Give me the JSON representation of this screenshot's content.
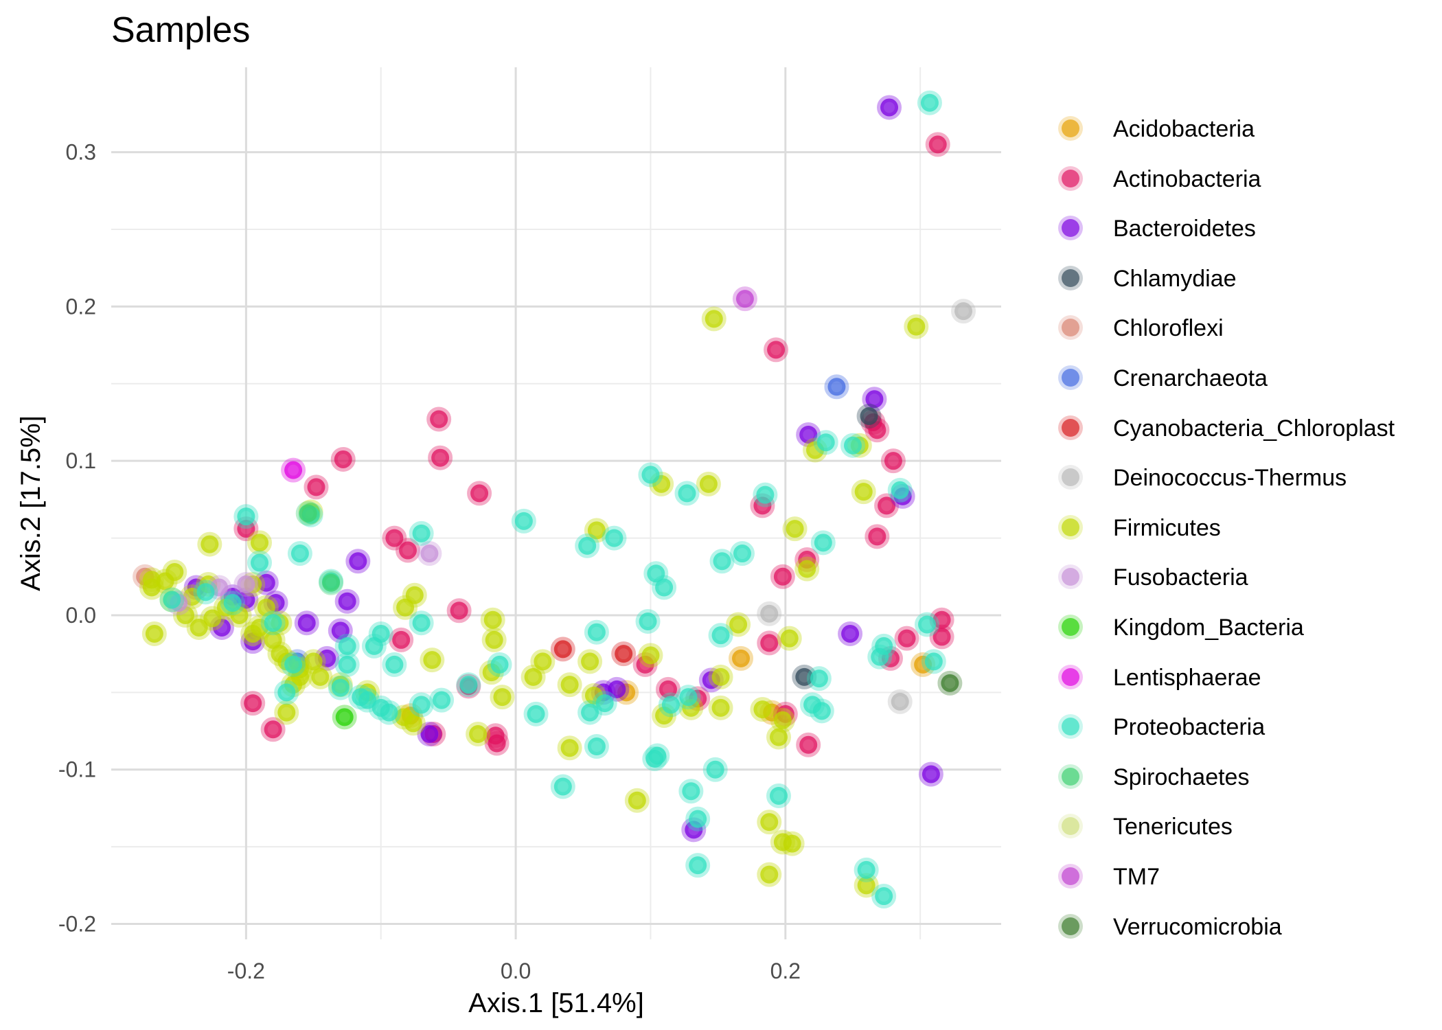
{
  "chart_data": {
    "type": "scatter",
    "title": "Samples",
    "xlabel": "Axis.1   [51.4%]",
    "ylabel": "Axis.2   [17.5%]",
    "xlim": [
      -0.3,
      0.36
    ],
    "ylim": [
      -0.21,
      0.355
    ],
    "x_ticks": [
      {
        "v": -0.2,
        "label": "-0.2"
      },
      {
        "v": 0.0,
        "label": "0.0"
      },
      {
        "v": 0.2,
        "label": "0.2"
      }
    ],
    "y_ticks": [
      {
        "v": -0.2,
        "label": "-0.2"
      },
      {
        "v": -0.1,
        "label": "-0.1"
      },
      {
        "v": 0.0,
        "label": "0.0"
      },
      {
        "v": 0.1,
        "label": "0.1"
      },
      {
        "v": 0.2,
        "label": "0.2"
      },
      {
        "v": 0.3,
        "label": "0.3"
      }
    ],
    "grid": true,
    "legend_position": "right",
    "series": [
      {
        "name": "Acidobacteria",
        "color": "#E69F00",
        "points": [
          [
            0.167,
            -0.028
          ],
          [
            0.302,
            -0.032
          ],
          [
            0.082,
            -0.05
          ],
          [
            -0.078,
            -0.065
          ],
          [
            0.19,
            -0.063
          ]
        ]
      },
      {
        "name": "Actinobacteria",
        "color": "#E0115F",
        "points": [
          [
            0.313,
            0.305
          ],
          [
            0.193,
            0.172
          ],
          [
            -0.057,
            0.127
          ],
          [
            -0.056,
            0.102
          ],
          [
            -0.128,
            0.101
          ],
          [
            -0.027,
            0.079
          ],
          [
            -0.148,
            0.083
          ],
          [
            0.183,
            0.071
          ],
          [
            0.28,
            0.1
          ],
          [
            0.268,
            0.12
          ],
          [
            0.265,
            0.125
          ],
          [
            0.275,
            0.071
          ],
          [
            0.268,
            0.051
          ],
          [
            0.216,
            0.036
          ],
          [
            0.198,
            0.025
          ],
          [
            -0.2,
            0.056
          ],
          [
            -0.09,
            0.05
          ],
          [
            -0.08,
            0.042
          ],
          [
            -0.042,
            0.003
          ],
          [
            0.316,
            -0.003
          ],
          [
            0.316,
            -0.014
          ],
          [
            0.29,
            -0.015
          ],
          [
            0.278,
            -0.028
          ],
          [
            0.188,
            -0.018
          ],
          [
            0.096,
            -0.032
          ],
          [
            0.113,
            -0.048
          ],
          [
            0.135,
            -0.054
          ],
          [
            0.2,
            -0.064
          ],
          [
            0.217,
            -0.084
          ],
          [
            -0.015,
            -0.078
          ],
          [
            -0.014,
            -0.083
          ],
          [
            -0.195,
            -0.057
          ],
          [
            -0.18,
            -0.074
          ],
          [
            -0.035,
            -0.046
          ],
          [
            -0.061,
            -0.077
          ],
          [
            -0.085,
            -0.016
          ]
        ]
      },
      {
        "name": "Bacteroidetes",
        "color": "#7B00E0",
        "points": [
          [
            0.277,
            0.329
          ],
          [
            0.266,
            0.14
          ],
          [
            0.217,
            0.117
          ],
          [
            0.287,
            0.077
          ],
          [
            0.308,
            -0.103
          ],
          [
            0.248,
            -0.012
          ],
          [
            -0.117,
            0.035
          ],
          [
            -0.125,
            0.009
          ],
          [
            -0.185,
            0.021
          ],
          [
            -0.178,
            0.008
          ],
          [
            -0.2,
            0.01
          ],
          [
            -0.21,
            0.012
          ],
          [
            -0.237,
            0.018
          ],
          [
            -0.155,
            -0.005
          ],
          [
            -0.13,
            -0.01
          ],
          [
            -0.14,
            -0.028
          ],
          [
            -0.195,
            -0.017
          ],
          [
            -0.218,
            -0.008
          ],
          [
            0.065,
            -0.05
          ],
          [
            0.075,
            -0.048
          ],
          [
            0.145,
            -0.042
          ],
          [
            0.132,
            -0.139
          ],
          [
            -0.064,
            -0.077
          ]
        ]
      },
      {
        "name": "Chlamydiae",
        "color": "#2F4858",
        "points": [
          [
            0.262,
            0.129
          ],
          [
            0.214,
            -0.04
          ]
        ]
      },
      {
        "name": "Chloroflexi",
        "color": "#D9826F",
        "points": [
          [
            -0.275,
            0.025
          ]
        ]
      },
      {
        "name": "Crenarchaeota",
        "color": "#4169E1",
        "points": [
          [
            0.238,
            0.148
          ],
          [
            -0.162,
            -0.03
          ]
        ]
      },
      {
        "name": "Cyanobacteria_Chloroplast",
        "color": "#D7191C",
        "points": [
          [
            0.035,
            -0.022
          ],
          [
            0.08,
            -0.025
          ]
        ]
      },
      {
        "name": "Deinococcus-Thermus",
        "color": "#B8B8B8",
        "points": [
          [
            0.332,
            0.197
          ],
          [
            0.188,
            0.001
          ],
          [
            0.285,
            -0.056
          ]
        ]
      },
      {
        "name": "Firmicutes",
        "color": "#C0D800",
        "points": [
          [
            0.147,
            0.192
          ],
          [
            0.297,
            0.187
          ],
          [
            0.222,
            0.107
          ],
          [
            0.255,
            0.11
          ],
          [
            0.258,
            0.08
          ],
          [
            0.143,
            0.085
          ],
          [
            0.108,
            0.085
          ],
          [
            0.207,
            0.056
          ],
          [
            0.216,
            0.03
          ],
          [
            -0.075,
            0.013
          ],
          [
            -0.082,
            0.005
          ],
          [
            0.06,
            0.055
          ],
          [
            -0.152,
            0.067
          ],
          [
            -0.227,
            0.046
          ],
          [
            -0.19,
            0.047
          ],
          [
            -0.062,
            -0.029
          ],
          [
            -0.017,
            -0.003
          ],
          [
            -0.016,
            -0.016
          ],
          [
            -0.018,
            -0.037
          ],
          [
            0.013,
            -0.04
          ],
          [
            0.02,
            -0.03
          ],
          [
            0.04,
            -0.045
          ],
          [
            0.058,
            -0.052
          ],
          [
            0.1,
            -0.026
          ],
          [
            0.055,
            -0.03
          ],
          [
            0.165,
            -0.006
          ],
          [
            0.203,
            -0.015
          ],
          [
            0.152,
            -0.04
          ],
          [
            0.183,
            -0.061
          ],
          [
            0.198,
            -0.068
          ],
          [
            0.13,
            -0.06
          ],
          [
            0.11,
            -0.065
          ],
          [
            0.152,
            -0.06
          ],
          [
            0.195,
            -0.079
          ],
          [
            0.04,
            -0.086
          ],
          [
            0.09,
            -0.12
          ],
          [
            -0.028,
            -0.077
          ],
          [
            -0.01,
            -0.053
          ],
          [
            0.188,
            -0.134
          ],
          [
            0.198,
            -0.147
          ],
          [
            0.205,
            -0.148
          ],
          [
            0.188,
            -0.168
          ],
          [
            0.26,
            -0.175
          ],
          [
            -0.27,
            0.018
          ],
          [
            -0.27,
            0.023
          ],
          [
            -0.26,
            0.022
          ],
          [
            -0.253,
            0.028
          ],
          [
            -0.24,
            0.012
          ],
          [
            -0.245,
            0.0
          ],
          [
            -0.235,
            -0.008
          ],
          [
            -0.225,
            -0.002
          ],
          [
            -0.215,
            0.005
          ],
          [
            -0.205,
            0.0
          ],
          [
            -0.195,
            -0.012
          ],
          [
            -0.19,
            -0.008
          ],
          [
            -0.18,
            -0.016
          ],
          [
            -0.175,
            -0.025
          ],
          [
            -0.17,
            -0.03
          ],
          [
            -0.16,
            -0.035
          ],
          [
            -0.15,
            -0.03
          ],
          [
            -0.145,
            -0.04
          ],
          [
            -0.16,
            -0.04
          ],
          [
            -0.17,
            -0.063
          ],
          [
            -0.165,
            -0.045
          ],
          [
            -0.175,
            -0.005
          ],
          [
            -0.185,
            0.005
          ],
          [
            -0.195,
            0.02
          ],
          [
            -0.228,
            0.02
          ],
          [
            -0.255,
            0.01
          ],
          [
            -0.268,
            -0.012
          ],
          [
            -0.083,
            -0.066
          ],
          [
            -0.076,
            -0.07
          ],
          [
            -0.13,
            -0.045
          ],
          [
            -0.11,
            -0.05
          ]
        ]
      },
      {
        "name": "Fusobacteria",
        "color": "#C690D8",
        "points": [
          [
            -0.064,
            0.04
          ],
          [
            -0.2,
            0.02
          ],
          [
            -0.25,
            0.008
          ],
          [
            -0.22,
            0.018
          ]
        ]
      },
      {
        "name": "Kingdom_Bacteria",
        "color": "#22D200",
        "points": [
          [
            -0.127,
            -0.066
          ]
        ]
      },
      {
        "name": "Lentisphaerae",
        "color": "#E000E0",
        "points": [
          [
            -0.165,
            0.094
          ]
        ]
      },
      {
        "name": "Proteobacteria",
        "color": "#2FE0C0",
        "points": [
          [
            0.307,
            0.332
          ],
          [
            0.23,
            0.112
          ],
          [
            0.25,
            0.11
          ],
          [
            0.1,
            0.091
          ],
          [
            0.127,
            0.079
          ],
          [
            0.185,
            0.078
          ],
          [
            0.285,
            0.081
          ],
          [
            0.006,
            0.061
          ],
          [
            0.073,
            0.05
          ],
          [
            0.053,
            0.045
          ],
          [
            0.168,
            0.04
          ],
          [
            0.153,
            0.035
          ],
          [
            0.228,
            0.047
          ],
          [
            0.104,
            0.027
          ],
          [
            0.11,
            0.018
          ],
          [
            -0.07,
            0.053
          ],
          [
            -0.152,
            0.065
          ],
          [
            -0.2,
            0.064
          ],
          [
            -0.19,
            0.034
          ],
          [
            -0.16,
            0.04
          ],
          [
            -0.137,
            0.022
          ],
          [
            -0.1,
            -0.012
          ],
          [
            -0.105,
            -0.02
          ],
          [
            -0.07,
            -0.005
          ],
          [
            0.06,
            -0.011
          ],
          [
            0.098,
            -0.004
          ],
          [
            0.152,
            -0.013
          ],
          [
            0.305,
            -0.006
          ],
          [
            0.273,
            -0.02
          ],
          [
            0.27,
            -0.027
          ],
          [
            0.31,
            -0.03
          ],
          [
            0.225,
            -0.041
          ],
          [
            -0.012,
            -0.032
          ],
          [
            0.015,
            -0.064
          ],
          [
            -0.035,
            -0.045
          ],
          [
            -0.055,
            -0.055
          ],
          [
            -0.07,
            -0.058
          ],
          [
            -0.094,
            -0.063
          ],
          [
            -0.1,
            -0.06
          ],
          [
            -0.11,
            -0.055
          ],
          [
            -0.115,
            -0.053
          ],
          [
            -0.13,
            -0.047
          ],
          [
            -0.17,
            -0.05
          ],
          [
            -0.09,
            -0.032
          ],
          [
            -0.125,
            -0.02
          ],
          [
            0.055,
            -0.063
          ],
          [
            0.066,
            -0.057
          ],
          [
            0.115,
            -0.058
          ],
          [
            0.128,
            -0.053
          ],
          [
            0.22,
            -0.058
          ],
          [
            0.227,
            -0.062
          ],
          [
            0.06,
            -0.085
          ],
          [
            0.105,
            -0.091
          ],
          [
            0.103,
            -0.093
          ],
          [
            0.148,
            -0.1
          ],
          [
            0.035,
            -0.111
          ],
          [
            0.13,
            -0.114
          ],
          [
            0.195,
            -0.117
          ],
          [
            0.135,
            -0.132
          ],
          [
            0.135,
            -0.162
          ],
          [
            0.26,
            -0.165
          ],
          [
            0.273,
            -0.182
          ],
          [
            -0.255,
            0.01
          ],
          [
            -0.23,
            0.015
          ],
          [
            -0.21,
            0.008
          ],
          [
            -0.18,
            -0.005
          ],
          [
            -0.165,
            -0.032
          ],
          [
            -0.125,
            -0.032
          ]
        ]
      },
      {
        "name": "Spirochaetes",
        "color": "#3CD070",
        "points": [
          [
            -0.137,
            0.021
          ],
          [
            -0.154,
            0.066
          ]
        ]
      },
      {
        "name": "Tenericutes",
        "color": "#D0E080",
        "points": []
      },
      {
        "name": "TM7",
        "color": "#C040D0",
        "points": [
          [
            0.17,
            0.205
          ]
        ]
      },
      {
        "name": "Verrucomicrobia",
        "color": "#3A7A2A",
        "points": [
          [
            0.322,
            -0.044
          ]
        ]
      }
    ]
  }
}
